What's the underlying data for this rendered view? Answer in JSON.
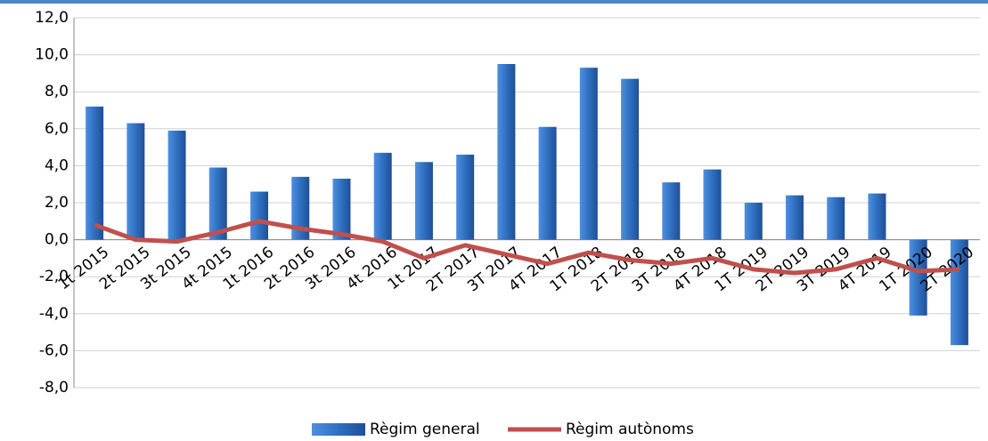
{
  "chart_data": {
    "type": "bar",
    "categories": [
      "1t 2015",
      "2t 2015",
      "3t 2015",
      "4t 2015",
      "1t 2016",
      "2t 2016",
      "3t 2016",
      "4t 2016",
      "1t 2017",
      "2T 2017",
      "3T 2017",
      "4T 2017",
      "1T 2018",
      "2T 2018",
      "3T 2018",
      "4T 2018",
      "1T 2019",
      "2T 2019",
      "3T 2019",
      "4T 2019",
      "1T 2020",
      "2T 2020"
    ],
    "series": [
      {
        "name": "Règim general",
        "type": "bar",
        "color": "#2f6fc0",
        "values": [
          7.2,
          6.3,
          5.9,
          3.9,
          2.6,
          3.4,
          3.3,
          4.7,
          4.2,
          4.6,
          9.5,
          6.1,
          9.3,
          8.7,
          3.1,
          3.8,
          2.0,
          2.4,
          2.3,
          2.5,
          -4.1,
          -5.7
        ]
      },
      {
        "name": "Règim autònoms",
        "type": "line",
        "color": "#c0504d",
        "values": [
          0.8,
          0.0,
          -0.1,
          0.4,
          1.0,
          0.6,
          0.3,
          -0.1,
          -1.0,
          -0.3,
          -0.8,
          -1.3,
          -0.7,
          -1.1,
          -1.3,
          -1.0,
          -1.6,
          -1.8,
          -1.6,
          -1.0,
          -1.7,
          -1.6
        ]
      }
    ],
    "ylim": [
      -8,
      12
    ],
    "yticks": [
      {
        "value": -8,
        "label": "-8,0"
      },
      {
        "value": -6,
        "label": "-6,0"
      },
      {
        "value": -4,
        "label": "-4,0"
      },
      {
        "value": -2,
        "label": "-2,0"
      },
      {
        "value": 0,
        "label": "0,0"
      },
      {
        "value": 2,
        "label": "2,0"
      },
      {
        "value": 4,
        "label": "4,0"
      },
      {
        "value": 6,
        "label": "6,0"
      },
      {
        "value": 8,
        "label": "8,0"
      },
      {
        "value": 10,
        "label": "10,0"
      },
      {
        "value": 12,
        "label": "12,0"
      }
    ],
    "grid": true,
    "legend": "bottom"
  }
}
